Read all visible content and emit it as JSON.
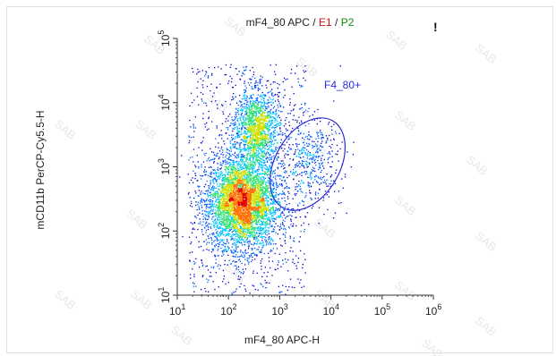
{
  "title": {
    "prefix": "mF4_80 APC / ",
    "gate1": "E1",
    "sep": " / ",
    "gate2": "P2"
  },
  "corner_mark": "!",
  "watermark": "SAB",
  "chart_data": {
    "type": "scatter",
    "title": "mF4_80 APC / E1 / P2",
    "xlabel": "mF4_80 APC-H",
    "ylabel": "mCD11b PerCP-Cy5.5-H",
    "xscale": "log",
    "yscale": "log",
    "xlim": [
      10,
      1000000
    ],
    "ylim": [
      10,
      100000
    ],
    "x_ticks": [
      {
        "base": "10",
        "exp": "1"
      },
      {
        "base": "10",
        "exp": "2"
      },
      {
        "base": "10",
        "exp": "3"
      },
      {
        "base": "10",
        "exp": "4"
      },
      {
        "base": "10",
        "exp": "5"
      },
      {
        "base": "10",
        "exp": "6"
      }
    ],
    "y_ticks": [
      {
        "base": "10",
        "exp": "1"
      },
      {
        "base": "10",
        "exp": "2"
      },
      {
        "base": "10",
        "exp": "3"
      },
      {
        "base": "10",
        "exp": "4"
      },
      {
        "base": "10",
        "exp": "5"
      }
    ],
    "gate": {
      "name": "F4_80+",
      "shape": "ellipse",
      "center": [
        3500,
        1100
      ],
      "color": "#2a2ad8"
    },
    "populations": [
      {
        "center": [
          180,
          280
        ],
        "spread_decades": [
          0.35,
          0.35
        ],
        "density": "high"
      },
      {
        "center": [
          350,
          4000
        ],
        "spread_decades": [
          0.22,
          0.3
        ],
        "density": "medium"
      },
      {
        "center": [
          4000,
          1200
        ],
        "spread_decades": [
          0.3,
          0.35
        ],
        "density": "low"
      }
    ],
    "colormap": [
      "#0000c8",
      "#0060ff",
      "#00c8ff",
      "#30e070",
      "#d0e000",
      "#ff7000",
      "#e00000"
    ],
    "grid": false,
    "legend": "none"
  }
}
